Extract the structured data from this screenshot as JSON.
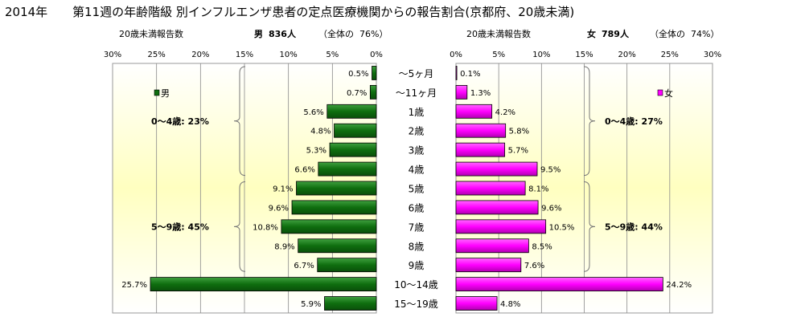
{
  "title_year": "2014年",
  "title": "第11週の年齢階級 別インフルエンザ患者の定点医療機関からの報告割合(京都府、20歳未満)",
  "left_header": {
    "label": "20歳未満報告数",
    "sex": "男",
    "count": "836人",
    "share_prefix": "（全体の",
    "share": "76%）"
  },
  "right_header": {
    "label": "20歳未満報告数",
    "sex": "女",
    "count": "789人",
    "share_prefix": "（全体の",
    "share": "74%）"
  },
  "colors": {
    "male": "#0f6e0f",
    "female": "#ff00ff",
    "panel_bg_center": "#ffffc0"
  },
  "chart_data": [
    {
      "type": "bar",
      "orientation": "horizontal",
      "direction": "reversed",
      "categories": [
        "～5ヶ月",
        "～11ヶ月",
        "1歳",
        "2歳",
        "3歳",
        "4歳",
        "5歳",
        "6歳",
        "7歳",
        "8歳",
        "9歳",
        "10～14歳",
        "15～19歳"
      ],
      "series": [
        {
          "name": "男",
          "values": [
            0.5,
            0.7,
            5.6,
            4.8,
            5.3,
            6.6,
            9.1,
            9.6,
            10.8,
            8.9,
            6.7,
            25.7,
            5.9
          ]
        }
      ],
      "value_labels": [
        "0.5%",
        "0.7%",
        "5.6%",
        "4.8%",
        "5.3%",
        "6.6%",
        "9.1%",
        "9.6%",
        "10.8%",
        "8.9%",
        "6.7%",
        "25.7%",
        "5.9%"
      ],
      "xlim": [
        0,
        30
      ],
      "ticks": [
        "0%",
        "5%",
        "10%",
        "15%",
        "20%",
        "25%",
        "30%"
      ],
      "legend": "top-left",
      "grid": true,
      "annotations": [
        "0～4歳: 23%",
        "5～9歳: 45%"
      ]
    },
    {
      "type": "bar",
      "orientation": "horizontal",
      "categories": [
        "～5ヶ月",
        "～11ヶ月",
        "1歳",
        "2歳",
        "3歳",
        "4歳",
        "5歳",
        "6歳",
        "7歳",
        "8歳",
        "9歳",
        "10～14歳",
        "15～19歳"
      ],
      "series": [
        {
          "name": "女",
          "values": [
            0.1,
            1.3,
            4.2,
            5.8,
            5.7,
            9.5,
            8.1,
            9.6,
            10.5,
            8.5,
            7.6,
            24.2,
            4.8
          ]
        }
      ],
      "value_labels": [
        "0.1%",
        "1.3%",
        "4.2%",
        "5.8%",
        "5.7%",
        "9.5%",
        "8.1%",
        "9.6%",
        "10.5%",
        "8.5%",
        "7.6%",
        "24.2%",
        "4.8%"
      ],
      "xlim": [
        0,
        30
      ],
      "ticks": [
        "0%",
        "5%",
        "10%",
        "15%",
        "20%",
        "25%",
        "30%"
      ],
      "legend": "top-right",
      "grid": true,
      "annotations": [
        "0～4歳: 27%",
        "5～9歳: 44%"
      ]
    }
  ]
}
